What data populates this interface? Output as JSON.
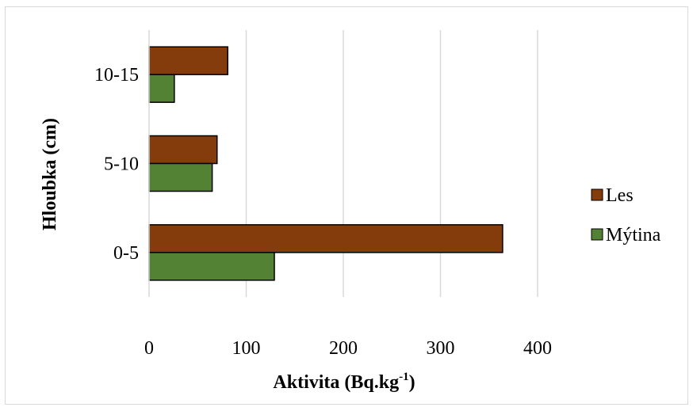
{
  "chart_data": {
    "type": "bar",
    "orientation": "horizontal",
    "categories": [
      "0-5",
      "5-10",
      "10-15"
    ],
    "series": [
      {
        "name": "Les",
        "color": "#843c0c",
        "values": [
          364,
          70,
          81
        ]
      },
      {
        "name": "Mýtina",
        "color": "#548235",
        "values": [
          129,
          65,
          26
        ]
      }
    ],
    "xlabel": "Aktivita (Bq.kg",
    "xlabel_sup": "-1",
    "xlabel_suffix": ")",
    "ylabel": "Hloubka (cm)",
    "xlim": [
      0,
      400
    ],
    "xticks": [
      "0",
      "100",
      "200",
      "300",
      "400"
    ],
    "grid": true,
    "legend_position": "right"
  }
}
